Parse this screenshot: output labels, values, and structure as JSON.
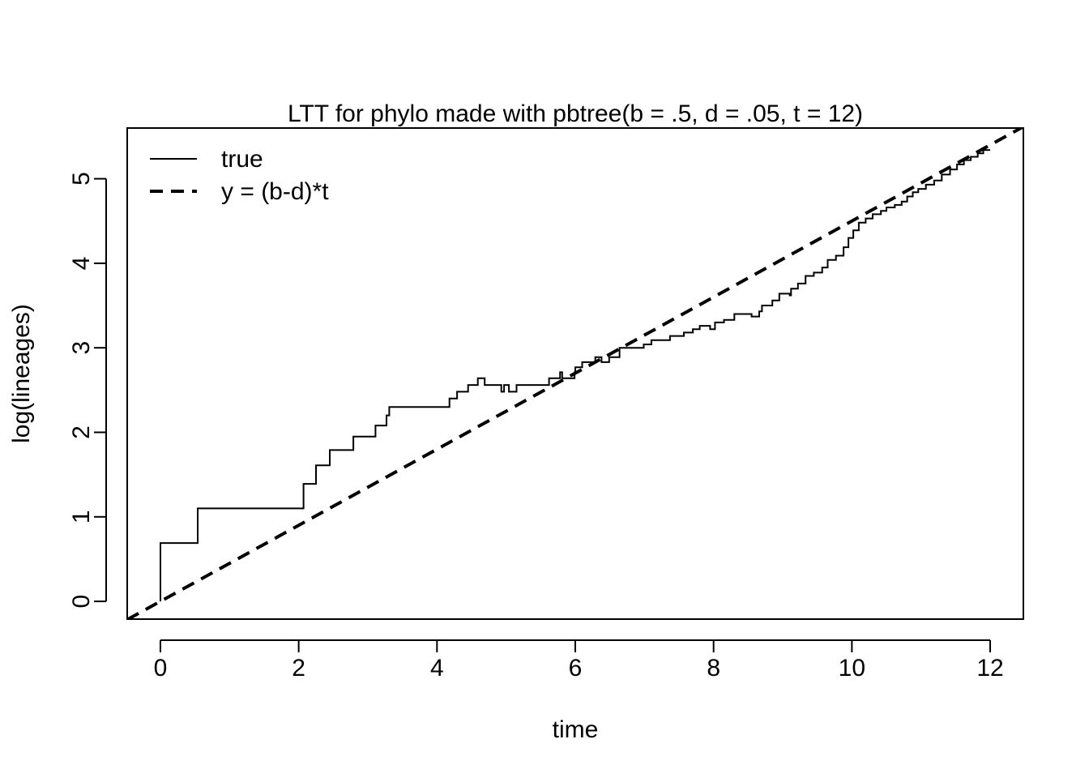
{
  "chart_data": {
    "type": "line",
    "title": "LTT for phylo made with pbtree(b = .5, d = .05, t = 12)",
    "xlabel": "time",
    "ylabel": "log(lineages)",
    "xlim": [
      -0.48,
      12.48
    ],
    "ylim": [
      -0.21,
      5.6
    ],
    "xticks": [
      0,
      2,
      4,
      6,
      8,
      10,
      12
    ],
    "yticks": [
      0,
      1,
      2,
      3,
      4,
      5
    ],
    "grid": false,
    "legend_position": "top-left",
    "legend": [
      "true",
      "y = (b-d)*t"
    ],
    "series": [
      {
        "name": "true",
        "style": "solid-step",
        "color": "#000000",
        "points": [
          [
            0,
            0
          ],
          [
            0,
            0.69
          ],
          [
            0.54,
            0.69
          ],
          [
            0.54,
            1.1
          ],
          [
            2.07,
            1.1
          ],
          [
            2.07,
            1.39
          ],
          [
            2.25,
            1.39
          ],
          [
            2.25,
            1.61
          ],
          [
            2.45,
            1.61
          ],
          [
            2.45,
            1.79
          ],
          [
            2.79,
            1.79
          ],
          [
            2.79,
            1.95
          ],
          [
            3.11,
            1.95
          ],
          [
            3.11,
            2.08
          ],
          [
            3.27,
            2.08
          ],
          [
            3.27,
            2.2
          ],
          [
            3.31,
            2.2
          ],
          [
            3.31,
            2.3
          ],
          [
            4.18,
            2.3
          ],
          [
            4.18,
            2.4
          ],
          [
            4.29,
            2.4
          ],
          [
            4.29,
            2.48
          ],
          [
            4.45,
            2.48
          ],
          [
            4.45,
            2.56
          ],
          [
            4.59,
            2.56
          ],
          [
            4.59,
            2.64
          ],
          [
            4.69,
            2.64
          ],
          [
            4.69,
            2.56
          ],
          [
            4.93,
            2.56
          ],
          [
            4.93,
            2.48
          ],
          [
            4.97,
            2.48
          ],
          [
            4.97,
            2.56
          ],
          [
            5.04,
            2.56
          ],
          [
            5.04,
            2.48
          ],
          [
            5.15,
            2.48
          ],
          [
            5.15,
            2.56
          ],
          [
            5.62,
            2.56
          ],
          [
            5.62,
            2.64
          ],
          [
            5.78,
            2.64
          ],
          [
            5.78,
            2.71
          ],
          [
            5.81,
            2.71
          ],
          [
            5.81,
            2.64
          ],
          [
            5.99,
            2.64
          ],
          [
            5.99,
            2.71
          ],
          [
            6.0,
            2.71
          ],
          [
            6.0,
            2.77
          ],
          [
            6.1,
            2.77
          ],
          [
            6.1,
            2.83
          ],
          [
            6.29,
            2.83
          ],
          [
            6.29,
            2.89
          ],
          [
            6.38,
            2.89
          ],
          [
            6.38,
            2.83
          ],
          [
            6.49,
            2.83
          ],
          [
            6.49,
            2.89
          ],
          [
            6.64,
            2.89
          ],
          [
            6.64,
            3.0
          ],
          [
            6.99,
            3.0
          ],
          [
            6.99,
            3.04
          ],
          [
            7.1,
            3.04
          ],
          [
            7.1,
            3.09
          ],
          [
            7.37,
            3.09
          ],
          [
            7.37,
            3.14
          ],
          [
            7.57,
            3.14
          ],
          [
            7.57,
            3.18
          ],
          [
            7.7,
            3.18
          ],
          [
            7.7,
            3.22
          ],
          [
            7.8,
            3.22
          ],
          [
            7.8,
            3.26
          ],
          [
            7.95,
            3.26
          ],
          [
            7.95,
            3.22
          ],
          [
            8.02,
            3.22
          ],
          [
            8.02,
            3.3
          ],
          [
            8.15,
            3.3
          ],
          [
            8.15,
            3.33
          ],
          [
            8.3,
            3.33
          ],
          [
            8.3,
            3.4
          ],
          [
            8.55,
            3.4
          ],
          [
            8.55,
            3.37
          ],
          [
            8.66,
            3.37
          ],
          [
            8.66,
            3.43
          ],
          [
            8.7,
            3.43
          ],
          [
            8.7,
            3.5
          ],
          [
            8.85,
            3.5
          ],
          [
            8.85,
            3.56
          ],
          [
            8.95,
            3.56
          ],
          [
            8.95,
            3.64
          ],
          [
            9.1,
            3.64
          ],
          [
            9.1,
            3.62
          ],
          [
            9.12,
            3.62
          ],
          [
            9.12,
            3.7
          ],
          [
            9.22,
            3.7
          ],
          [
            9.22,
            3.76
          ],
          [
            9.33,
            3.76
          ],
          [
            9.33,
            3.85
          ],
          [
            9.45,
            3.85
          ],
          [
            9.45,
            3.89
          ],
          [
            9.57,
            3.89
          ],
          [
            9.57,
            3.95
          ],
          [
            9.65,
            3.95
          ],
          [
            9.65,
            4.04
          ],
          [
            9.77,
            4.04
          ],
          [
            9.77,
            4.09
          ],
          [
            9.88,
            4.09
          ],
          [
            9.88,
            4.19
          ],
          [
            9.95,
            4.19
          ],
          [
            9.95,
            4.3
          ],
          [
            10.02,
            4.3
          ],
          [
            10.02,
            4.39
          ],
          [
            10.1,
            4.39
          ],
          [
            10.1,
            4.48
          ],
          [
            10.2,
            4.48
          ],
          [
            10.2,
            4.53
          ],
          [
            10.3,
            4.53
          ],
          [
            10.3,
            4.58
          ],
          [
            10.42,
            4.58
          ],
          [
            10.42,
            4.62
          ],
          [
            10.5,
            4.62
          ],
          [
            10.5,
            4.66
          ],
          [
            10.62,
            4.66
          ],
          [
            10.62,
            4.69
          ],
          [
            10.72,
            4.69
          ],
          [
            10.72,
            4.73
          ],
          [
            10.8,
            4.73
          ],
          [
            10.8,
            4.79
          ],
          [
            10.88,
            4.79
          ],
          [
            10.88,
            4.84
          ],
          [
            10.96,
            4.84
          ],
          [
            10.96,
            4.88
          ],
          [
            11.07,
            4.88
          ],
          [
            11.07,
            4.93
          ],
          [
            11.19,
            4.93
          ],
          [
            11.19,
            4.98
          ],
          [
            11.3,
            4.98
          ],
          [
            11.3,
            5.05
          ],
          [
            11.42,
            5.05
          ],
          [
            11.42,
            5.11
          ],
          [
            11.52,
            5.11
          ],
          [
            11.52,
            5.17
          ],
          [
            11.62,
            5.17
          ],
          [
            11.62,
            5.22
          ],
          [
            11.72,
            5.22
          ],
          [
            11.72,
            5.26
          ],
          [
            11.82,
            5.26
          ],
          [
            11.82,
            5.3
          ],
          [
            11.9,
            5.3
          ],
          [
            11.9,
            5.34
          ],
          [
            12.0,
            5.34
          ]
        ]
      },
      {
        "name": "y = (b-d)*t",
        "style": "dashed",
        "color": "#000000",
        "slope": 0.45,
        "intercept": 0
      }
    ]
  }
}
